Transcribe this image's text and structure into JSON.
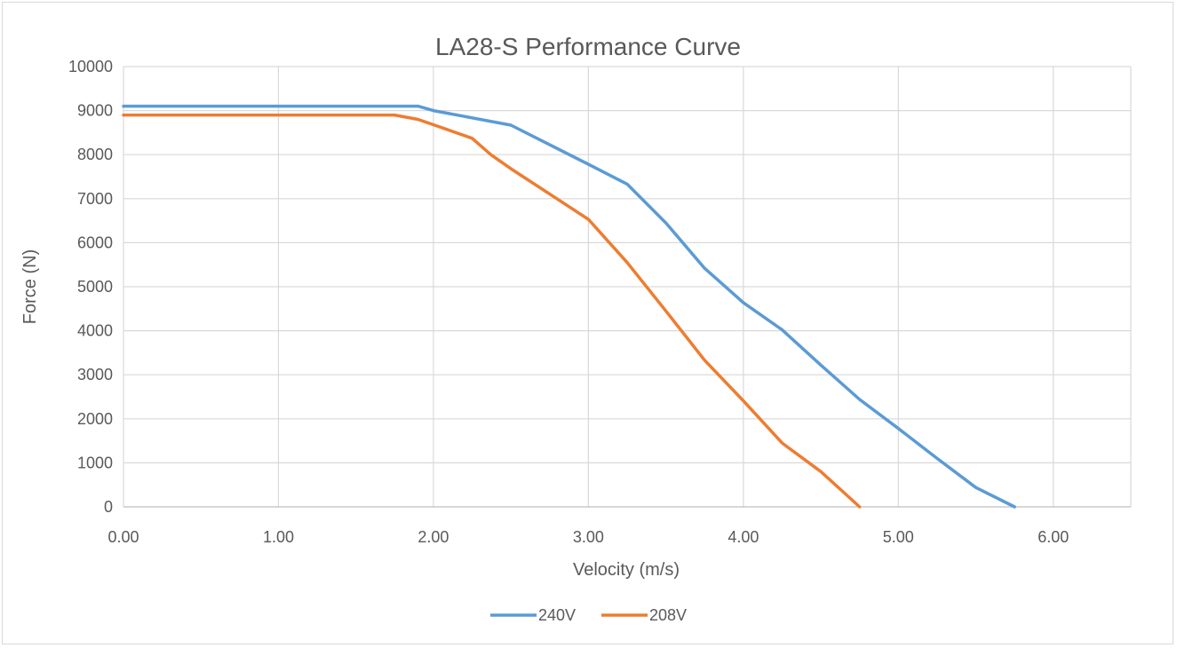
{
  "chart_data": {
    "type": "line",
    "title": "LA28-S Performance Curve",
    "xlabel": "Velocity (m/s)",
    "ylabel": "Force (N)",
    "xlim": [
      0,
      6.5
    ],
    "ylim": [
      0,
      10000
    ],
    "x_ticks": [
      "0.00",
      "1.00",
      "2.00",
      "3.00",
      "4.00",
      "5.00",
      "6.00"
    ],
    "y_ticks": [
      "0",
      "1000",
      "2000",
      "3000",
      "4000",
      "5000",
      "6000",
      "7000",
      "8000",
      "9000",
      "10000"
    ],
    "grid": true,
    "legend_position": "bottom",
    "series": [
      {
        "name": "240V",
        "color": "#5b9bd5",
        "x": [
          0,
          1.9,
          2.0,
          2.5,
          3.0,
          3.25,
          3.5,
          3.75,
          4.0,
          4.25,
          4.5,
          4.75,
          5.0,
          5.25,
          5.5,
          5.75
        ],
        "y": [
          9100,
          9100,
          9000,
          8670,
          7780,
          7330,
          6450,
          5420,
          4640,
          4020,
          3220,
          2440,
          1780,
          1100,
          440,
          0
        ]
      },
      {
        "name": "208V",
        "color": "#ed7d31",
        "x": [
          0,
          1.75,
          1.9,
          2.0,
          2.25,
          2.37,
          2.5,
          3.0,
          3.25,
          3.5,
          3.75,
          4.0,
          4.25,
          4.5,
          4.75
        ],
        "y": [
          8900,
          8900,
          8800,
          8680,
          8370,
          8000,
          7680,
          6530,
          5550,
          4450,
          3330,
          2410,
          1450,
          800,
          0
        ]
      }
    ]
  }
}
